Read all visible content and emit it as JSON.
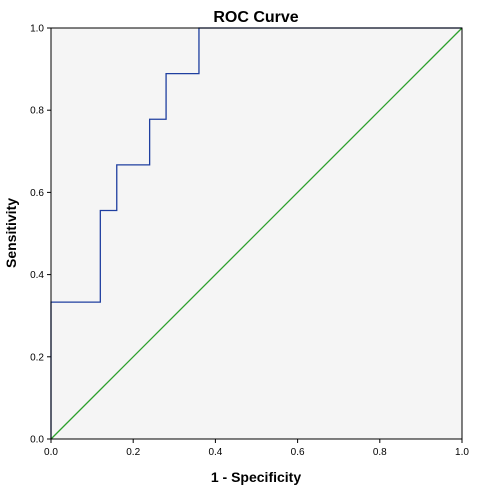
{
  "chart_data": {
    "type": "line",
    "title": "ROC Curve",
    "xlabel": "1 - Specificity",
    "ylabel": "Sensitivity",
    "xlim": [
      0.0,
      1.0
    ],
    "ylim": [
      0.0,
      1.0
    ],
    "x_ticks": [
      "0.0",
      "0.2",
      "0.4",
      "0.6",
      "0.8",
      "1.0"
    ],
    "y_ticks": [
      "0.0",
      "0.2",
      "0.4",
      "0.6",
      "0.8",
      "1.0"
    ],
    "grid": false,
    "legend": "none",
    "plot_background": "#f5f5f5",
    "series": [
      {
        "color": "#1f3fa0",
        "step": true,
        "x": [
          0.0,
          0.0,
          0.12,
          0.12,
          0.16,
          0.16,
          0.24,
          0.24,
          0.28,
          0.28,
          0.36,
          0.36,
          1.0
        ],
        "y": [
          0.0,
          0.333,
          0.333,
          0.556,
          0.556,
          0.667,
          0.667,
          0.778,
          0.778,
          0.889,
          0.889,
          1.0,
          1.0
        ]
      },
      {
        "color": "#2ca02c",
        "step": false,
        "x": [
          0.0,
          1.0
        ],
        "y": [
          0.0,
          1.0
        ]
      }
    ]
  }
}
